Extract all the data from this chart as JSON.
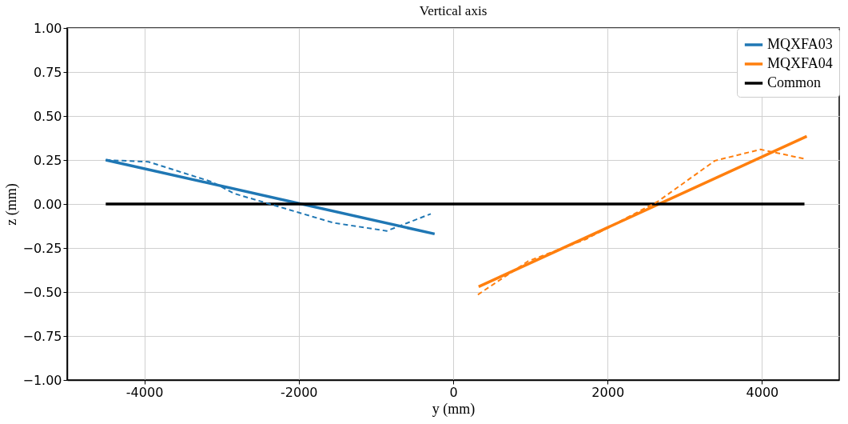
{
  "chart_data": {
    "type": "line",
    "title": "Vertical axis",
    "xlabel": "y (mm)",
    "ylabel": "z (mm)",
    "xlim": [
      -5000,
      5000
    ],
    "xticks": [
      -4000,
      -2000,
      0,
      2000,
      4000
    ],
    "ylim": [
      -1.0,
      1.0
    ],
    "yticks": [
      {
        "value": -1.0,
        "label": "−1.00"
      },
      {
        "value": -0.75,
        "label": "−0.75"
      },
      {
        "value": -0.5,
        "label": "−0.50"
      },
      {
        "value": -0.25,
        "label": "−0.25"
      },
      {
        "value": 0,
        "label": "0.00"
      },
      {
        "value": 0.25,
        "label": "0.25"
      },
      {
        "value": 0.5,
        "label": "0.50"
      },
      {
        "value": 0.75,
        "label": "0.75"
      },
      {
        "value": 1.0,
        "label": "1.00"
      }
    ],
    "grid": true,
    "legend": "top right",
    "marker": "none",
    "series": [
      {
        "name": "MQXFA03",
        "color": "#1f77b4",
        "line_style": "solid",
        "x": [
          -4500,
          -240
        ],
        "values": [
          0.25,
          -0.17
        ]
      },
      {
        "name": "MQXFA04",
        "color": "#ff7f0e",
        "line_style": "solid",
        "x": [
          330,
          4580
        ],
        "values": [
          -0.47,
          0.385
        ]
      },
      {
        "name": "Common",
        "color": "#000000",
        "line_style": "solid",
        "x": [
          -4500,
          4550
        ],
        "values": [
          0.0,
          0.0
        ]
      },
      {
        "color": "#1f77b4",
        "line_style": "dashed",
        "x": [
          -4500,
          -3950,
          -3120,
          -2840,
          -2260,
          -1550,
          -860,
          -290
        ],
        "values": [
          0.25,
          0.24,
          0.125,
          0.06,
          -0.015,
          -0.107,
          -0.153,
          -0.056
        ]
      },
      {
        "color": "#ff7f0e",
        "line_style": "dashed",
        "x": [
          320,
          970,
          1720,
          2650,
          3390,
          3980,
          4570
        ],
        "values": [
          -0.515,
          -0.325,
          -0.2,
          0.014,
          0.246,
          0.31,
          0.255
        ]
      }
    ]
  }
}
